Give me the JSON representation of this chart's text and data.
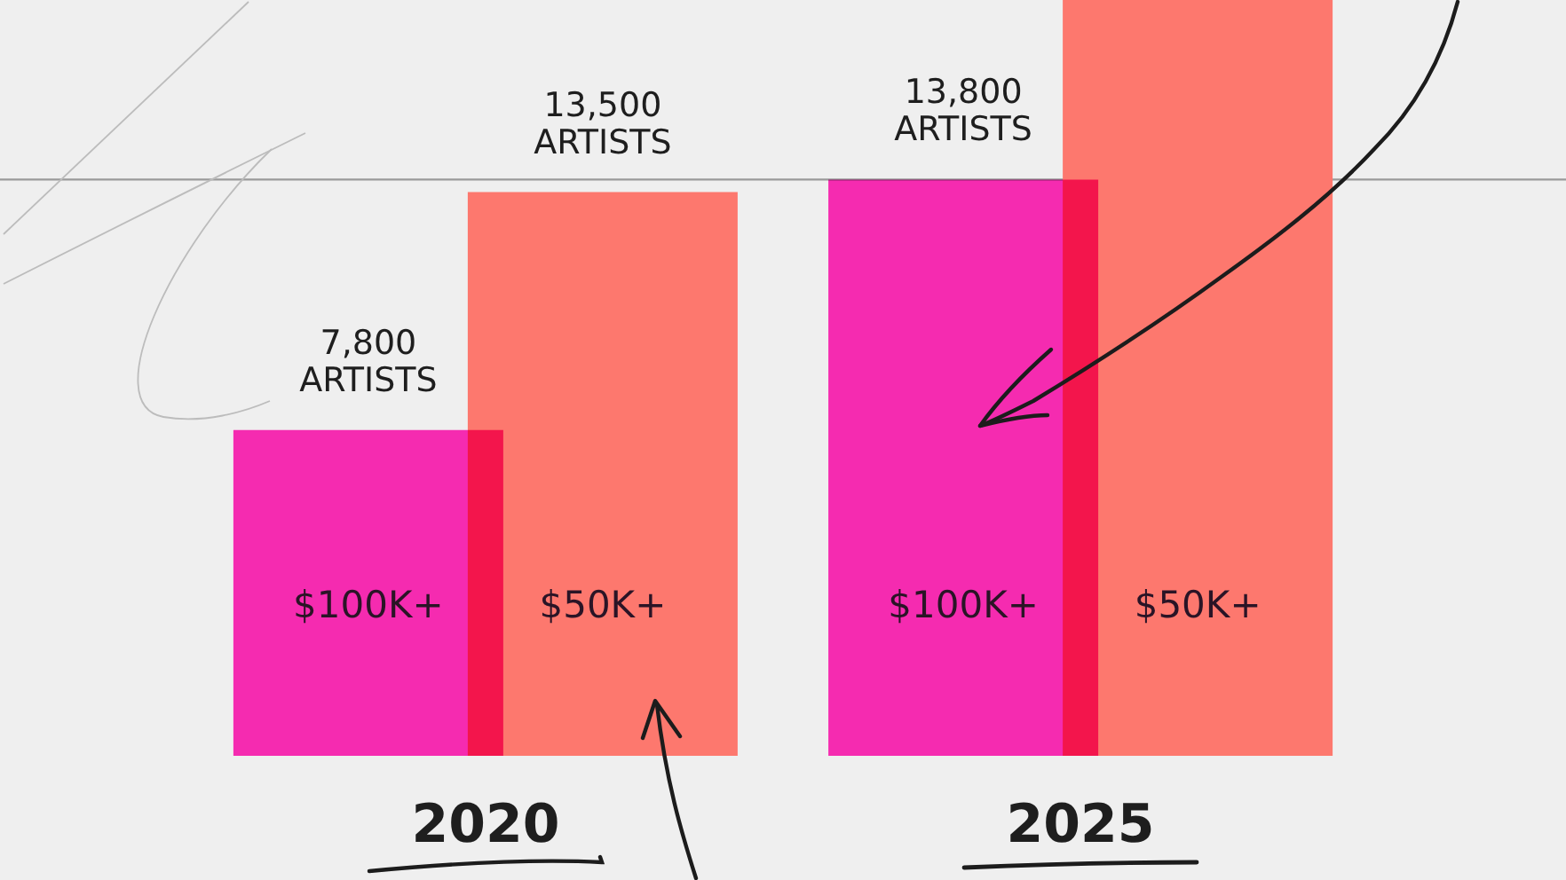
{
  "chart_data": {
    "type": "bar",
    "categories": [
      "2020",
      "2025"
    ],
    "series": [
      {
        "name": "$100K+",
        "color": "#f52bb0",
        "values": [
          7800,
          13800
        ],
        "value_labels": [
          "7,800 ARTISTS",
          "13,800 ARTISTS"
        ]
      },
      {
        "name": "$50K+",
        "color": "#fd786e",
        "values": [
          13500,
          18100
        ],
        "value_labels": [
          "13,500 ARTISTS",
          null
        ]
      }
    ],
    "ylim": [
      0,
      18100
    ],
    "tick_labels": "x",
    "ref_lines": [
      {
        "axis": "y",
        "value": 13800,
        "color": "#9a9a9a"
      }
    ]
  }
}
